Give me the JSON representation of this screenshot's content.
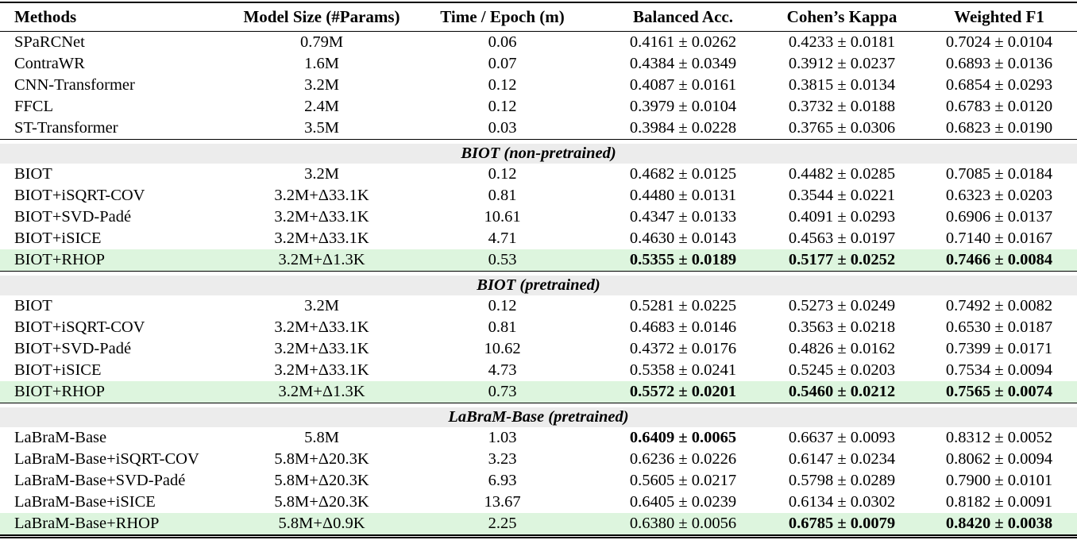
{
  "colors": {
    "highlight_green": "#ddf5de",
    "section_gray": "#ececec"
  },
  "table": {
    "columns": [
      "Methods",
      "Model Size (#Params)",
      "Time / Epoch (m)",
      "Balanced Acc.",
      "Cohen’s Kappa",
      "Weighted F1"
    ],
    "sections": [
      {
        "title": null,
        "rows": [
          {
            "cells": [
              "SPaRCNet",
              "0.79M",
              "0.06",
              "0.4161 ± 0.0262",
              "0.4233 ± 0.0181",
              "0.7024 ± 0.0104"
            ],
            "bold": [
              false,
              false,
              false,
              false,
              false,
              false
            ],
            "highlight": false
          },
          {
            "cells": [
              "ContraWR",
              "1.6M",
              "0.07",
              "0.4384 ± 0.0349",
              "0.3912 ± 0.0237",
              "0.6893 ± 0.0136"
            ],
            "bold": [
              false,
              false,
              false,
              false,
              false,
              false
            ],
            "highlight": false
          },
          {
            "cells": [
              "CNN-Transformer",
              "3.2M",
              "0.12",
              "0.4087 ± 0.0161",
              "0.3815 ± 0.0134",
              "0.6854 ± 0.0293"
            ],
            "bold": [
              false,
              false,
              false,
              false,
              false,
              false
            ],
            "highlight": false
          },
          {
            "cells": [
              "FFCL",
              "2.4M",
              "0.12",
              "0.3979 ± 0.0104",
              "0.3732 ± 0.0188",
              "0.6783 ± 0.0120"
            ],
            "bold": [
              false,
              false,
              false,
              false,
              false,
              false
            ],
            "highlight": false
          },
          {
            "cells": [
              "ST-Transformer",
              "3.5M",
              "0.03",
              "0.3984 ± 0.0228",
              "0.3765 ± 0.0306",
              "0.6823 ± 0.0190"
            ],
            "bold": [
              false,
              false,
              false,
              false,
              false,
              false
            ],
            "highlight": false
          }
        ]
      },
      {
        "title": "BIOT (non-pretrained)",
        "rows": [
          {
            "cells": [
              "BIOT",
              "3.2M",
              "0.12",
              "0.4682 ± 0.0125",
              "0.4482 ± 0.0285",
              "0.7085 ± 0.0184"
            ],
            "bold": [
              false,
              false,
              false,
              false,
              false,
              false
            ],
            "highlight": false
          },
          {
            "cells": [
              "BIOT+iSQRT-COV",
              "3.2M+Δ33.1K",
              "0.81",
              "0.4480 ± 0.0131",
              "0.3544 ± 0.0221",
              "0.6323 ± 0.0203"
            ],
            "bold": [
              false,
              false,
              false,
              false,
              false,
              false
            ],
            "highlight": false
          },
          {
            "cells": [
              "BIOT+SVD-Padé",
              "3.2M+Δ33.1K",
              "10.61",
              "0.4347 ± 0.0133",
              "0.4091 ± 0.0293",
              "0.6906 ± 0.0137"
            ],
            "bold": [
              false,
              false,
              false,
              false,
              false,
              false
            ],
            "highlight": false
          },
          {
            "cells": [
              "BIOT+iSICE",
              "3.2M+Δ33.1K",
              "4.71",
              "0.4630 ± 0.0143",
              "0.4563 ± 0.0197",
              "0.7140 ± 0.0167"
            ],
            "bold": [
              false,
              false,
              false,
              false,
              false,
              false
            ],
            "highlight": false
          },
          {
            "cells": [
              "BIOT+RHOP",
              "3.2M+Δ1.3K",
              "0.53",
              "0.5355 ± 0.0189",
              "0.5177 ± 0.0252",
              "0.7466 ± 0.0084"
            ],
            "bold": [
              false,
              false,
              false,
              true,
              true,
              true
            ],
            "highlight": true
          }
        ]
      },
      {
        "title": "BIOT (pretrained)",
        "rows": [
          {
            "cells": [
              "BIOT",
              "3.2M",
              "0.12",
              "0.5281 ± 0.0225",
              "0.5273 ± 0.0249",
              "0.7492 ± 0.0082"
            ],
            "bold": [
              false,
              false,
              false,
              false,
              false,
              false
            ],
            "highlight": false
          },
          {
            "cells": [
              "BIOT+iSQRT-COV",
              "3.2M+Δ33.1K",
              "0.81",
              "0.4683 ± 0.0146",
              "0.3563 ± 0.0218",
              "0.6530 ± 0.0187"
            ],
            "bold": [
              false,
              false,
              false,
              false,
              false,
              false
            ],
            "highlight": false
          },
          {
            "cells": [
              "BIOT+SVD-Padé",
              "3.2M+Δ33.1K",
              "10.62",
              "0.4372 ± 0.0176",
              "0.4826 ± 0.0162",
              "0.7399 ± 0.0171"
            ],
            "bold": [
              false,
              false,
              false,
              false,
              false,
              false
            ],
            "highlight": false
          },
          {
            "cells": [
              "BIOT+iSICE",
              "3.2M+Δ33.1K",
              "4.73",
              "0.5358 ± 0.0241",
              "0.5245 ± 0.0203",
              "0.7534 ± 0.0094"
            ],
            "bold": [
              false,
              false,
              false,
              false,
              false,
              false
            ],
            "highlight": false
          },
          {
            "cells": [
              "BIOT+RHOP",
              "3.2M+Δ1.3K",
              "0.73",
              "0.5572 ± 0.0201",
              "0.5460 ± 0.0212",
              "0.7565 ± 0.0074"
            ],
            "bold": [
              false,
              false,
              false,
              true,
              true,
              true
            ],
            "highlight": true
          }
        ]
      },
      {
        "title": "LaBraM-Base (pretrained)",
        "rows": [
          {
            "cells": [
              "LaBraM-Base",
              "5.8M",
              "1.03",
              "0.6409 ± 0.0065",
              "0.6637 ± 0.0093",
              "0.8312 ± 0.0052"
            ],
            "bold": [
              false,
              false,
              false,
              true,
              false,
              false
            ],
            "highlight": false
          },
          {
            "cells": [
              "LaBraM-Base+iSQRT-COV",
              "5.8M+Δ20.3K",
              "3.23",
              "0.6236 ± 0.0226",
              "0.6147 ± 0.0234",
              "0.8062 ± 0.0094"
            ],
            "bold": [
              false,
              false,
              false,
              false,
              false,
              false
            ],
            "highlight": false
          },
          {
            "cells": [
              "LaBraM-Base+SVD-Padé",
              "5.8M+Δ20.3K",
              "6.93",
              "0.5605 ± 0.0217",
              "0.5798 ± 0.0289",
              "0.7900 ± 0.0101"
            ],
            "bold": [
              false,
              false,
              false,
              false,
              false,
              false
            ],
            "highlight": false
          },
          {
            "cells": [
              "LaBraM-Base+iSICE",
              "5.8M+Δ20.3K",
              "13.67",
              "0.6405 ± 0.0239",
              "0.6134 ± 0.0302",
              "0.8182 ± 0.0091"
            ],
            "bold": [
              false,
              false,
              false,
              false,
              false,
              false
            ],
            "highlight": false
          },
          {
            "cells": [
              "LaBraM-Base+RHOP",
              "5.8M+Δ0.9K",
              "2.25",
              "0.6380 ± 0.0056",
              "0.6785 ± 0.0079",
              "0.8420 ± 0.0038"
            ],
            "bold": [
              false,
              false,
              false,
              false,
              true,
              true
            ],
            "highlight": true
          }
        ]
      }
    ]
  }
}
